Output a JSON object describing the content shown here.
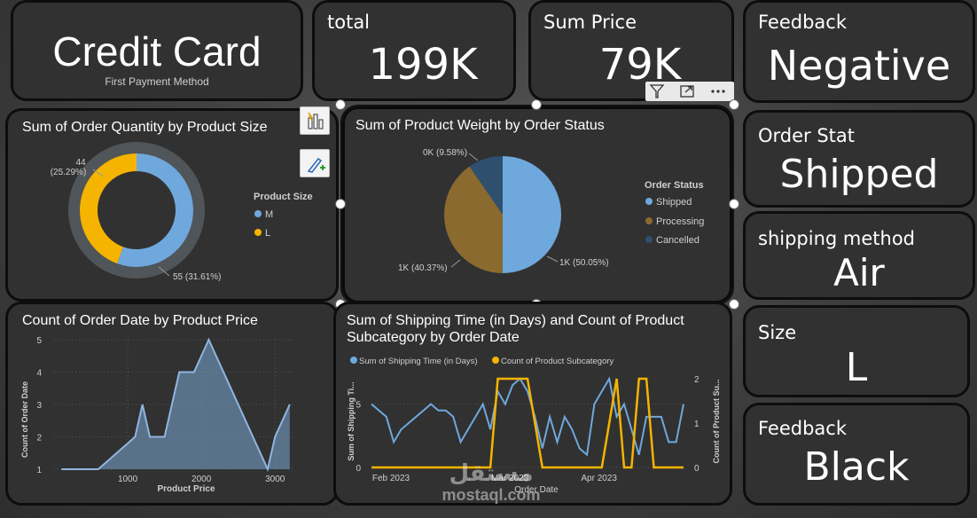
{
  "kpis": {
    "credit": {
      "value": "Credit Card",
      "sub": "First Payment Method"
    },
    "total": {
      "title": "total",
      "value": "199K"
    },
    "sum_price": {
      "title": "Sum Price",
      "value": "79K"
    },
    "feedback_top": {
      "title": "Feedback",
      "value": "Negative"
    },
    "order_stat": {
      "title": "Order Stat",
      "value": "Shipped"
    },
    "shipping_method": {
      "title": "shipping method",
      "value": "Air"
    },
    "size": {
      "title": "Size",
      "value": "L"
    },
    "feedback_bottom": {
      "title": "Feedback",
      "value": "Black"
    }
  },
  "donut": {
    "title": "Sum of Order Quantity by Product Size",
    "legend_title": "Product Size",
    "label_top_value": "44",
    "label_top_pct": "(25.29%)",
    "label_bottom": "55 (31.61%)"
  },
  "pie": {
    "title": "Sum of Product Weight by Order Status",
    "legend_title": "Order Status",
    "label_cancelled": "0K (9.58%)",
    "label_processing": "1K (40.37%)",
    "label_shipped": "1K (50.05%)"
  },
  "area": {
    "title": "Count of Order Date by Product Price",
    "ylabel": "Count of Order Date",
    "xlabel": "Product Price"
  },
  "combo": {
    "title_line1": "Sum of Shipping Time (in Days) and Count of Product",
    "title_line2": "Subcategory by Order Date",
    "ylabel_left": "Sum of Shipping Ti...",
    "ylabel_right": "Count of Product Su...",
    "xlabel": "Order Date"
  },
  "watermark": {
    "arabic": "مستقل",
    "latin": "mostaql.com"
  },
  "colors": {
    "blue": "#6fa8dc",
    "gold": "#f4b400",
    "brown": "#8b6a2f",
    "navy": "#2f4f6f",
    "area": "#6f93b8"
  },
  "chart_data": [
    {
      "type": "pie",
      "title": "Sum of Order Quantity by Product Size",
      "categories": [
        "M",
        "L"
      ],
      "values": [
        55,
        44
      ],
      "legend": "Product Size"
    },
    {
      "type": "pie",
      "title": "Sum of Product Weight by Order Status",
      "categories": [
        "Shipped",
        "Processing",
        "Cancelled"
      ],
      "values": [
        50.05,
        40.37,
        9.58
      ],
      "legend": "Order Status"
    },
    {
      "type": "area",
      "title": "Count of Order Date by Product Price",
      "xlabel": "Product Price",
      "ylabel": "Count of Order Date",
      "x": [
        100,
        600,
        1100,
        1200,
        1300,
        1500,
        1700,
        1900,
        2100,
        2300,
        2700,
        2900,
        3000,
        3200
      ],
      "y": [
        1,
        1,
        2,
        3,
        2,
        2,
        4,
        4,
        5,
        4,
        2,
        1,
        2,
        3
      ],
      "xticks": [
        "1000",
        "2000",
        "3000"
      ],
      "yticks": [
        "1",
        "2",
        "3",
        "4",
        "5"
      ],
      "xlim": [
        0,
        3250
      ],
      "ylim": [
        1,
        5
      ]
    },
    {
      "type": "line",
      "title": "Sum of Shipping Time (in Days) and Count of Product Subcategory by Order Date",
      "xlabel": "Order Date",
      "ylabel": "Sum of Shipping Ti...",
      "xticks": [
        "Feb 2023",
        "Mar 2023",
        "Apr 2023"
      ],
      "yticks_left": [
        "0",
        "5"
      ],
      "yticks_right": [
        "0",
        "1",
        "2"
      ],
      "series": [
        {
          "name": "Sum of Shipping Time (in Days)",
          "axis": "left",
          "values": [
            5,
            4.5,
            4,
            2,
            3,
            3.5,
            4,
            4.5,
            5,
            4.5,
            4.5,
            4,
            2,
            3,
            4,
            5,
            3,
            6,
            5,
            6.5,
            7,
            6,
            4,
            1.5,
            4,
            2,
            4,
            3,
            1.5,
            1,
            5,
            6,
            7,
            4,
            5,
            3,
            1,
            4,
            4,
            4,
            2,
            2,
            5
          ]
        },
        {
          "name": "Count of Product Subcategory",
          "axis": "right",
          "values": [
            0,
            0,
            0,
            0,
            0,
            0,
            0,
            0,
            0,
            0,
            0,
            0,
            0,
            0,
            0,
            0,
            0,
            2,
            2,
            2,
            2,
            2,
            1,
            0,
            0,
            0,
            0,
            0,
            0,
            0,
            0,
            0,
            1,
            2,
            0,
            0,
            2,
            2,
            0,
            0,
            0,
            0,
            0
          ]
        }
      ]
    }
  ]
}
